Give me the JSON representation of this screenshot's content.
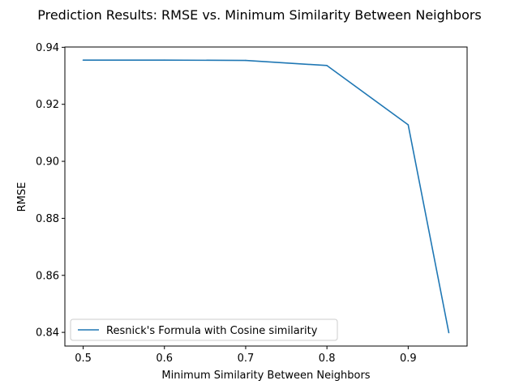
{
  "chart_data": {
    "type": "line",
    "title": "Prediction Results: RMSE vs. Minimum Similarity Between Neighbors",
    "xlabel": "Minimum Similarity Between Neighbors",
    "ylabel": "RMSE",
    "xlim": [
      0.4775,
      0.9725
    ],
    "ylim": [
      0.8352,
      0.9401
    ],
    "xticks": [
      0.5,
      0.6,
      0.7,
      0.8,
      0.9
    ],
    "xtick_labels": [
      "0.5",
      "0.6",
      "0.7",
      "0.8",
      "0.9"
    ],
    "yticks": [
      0.84,
      0.86,
      0.88,
      0.9,
      0.92,
      0.94
    ],
    "ytick_labels": [
      "0.84",
      "0.86",
      "0.88",
      "0.90",
      "0.92",
      "0.94"
    ],
    "grid": false,
    "legend_position": "lower-left",
    "series": [
      {
        "name": "Resnick's Formula with Cosine similarity",
        "color": "#1f77b4",
        "x": [
          0.5,
          0.6,
          0.7,
          0.8,
          0.9,
          0.95
        ],
        "y": [
          0.9355,
          0.9355,
          0.9354,
          0.9336,
          0.9128,
          0.8399
        ]
      }
    ]
  }
}
